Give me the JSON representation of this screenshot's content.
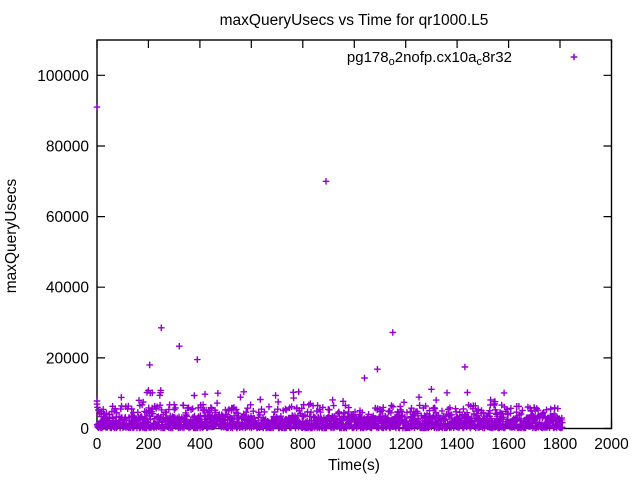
{
  "chart_data": {
    "type": "scatter",
    "title": "maxQueryUsecs vs Time for qr1000.L5",
    "xlabel": "Time(s)",
    "ylabel": "maxQueryUsecs",
    "xlim": [
      0,
      2000
    ],
    "ylim": [
      0,
      110000
    ],
    "xticks": [
      0,
      200,
      400,
      600,
      800,
      1000,
      1200,
      1400,
      1600,
      1800,
      2000
    ],
    "yticks": [
      0,
      20000,
      40000,
      60000,
      80000,
      100000
    ],
    "grid": false,
    "background_color": "#ffffff",
    "border_color": "#000000",
    "legend_position": "top-right-inside",
    "series": [
      {
        "name": "pg178_o2nofp.cx10a_c8r32",
        "name_segments": [
          {
            "text": "pg178",
            "subscript": false
          },
          {
            "text": "o",
            "subscript": true
          },
          {
            "text": "2nofp.cx10a",
            "subscript": false
          },
          {
            "text": "c",
            "subscript": true
          },
          {
            "text": "8r32",
            "subscript": false
          }
        ],
        "marker": "plus",
        "color": "#9400d3",
        "outliers": [
          [
            0,
            91000
          ],
          [
            890,
            70000
          ],
          [
            250,
            28500
          ],
          [
            1150,
            27200
          ],
          [
            320,
            23300
          ],
          [
            390,
            19500
          ],
          [
            205,
            18000
          ],
          [
            1430,
            17400
          ],
          [
            1090,
            16800
          ],
          [
            1040,
            14300
          ],
          [
            1300,
            11100
          ],
          [
            200,
            10800
          ],
          [
            248,
            10800
          ],
          [
            1440,
            10200
          ],
          [
            215,
            10100
          ],
          [
            420,
            9700
          ],
          [
            1530,
            8100
          ],
          [
            1547,
            7600
          ],
          [
            1545,
            7000
          ],
          [
            1675,
            6100
          ],
          [
            1683,
            5800
          ],
          [
            0,
            7800
          ],
          [
            0,
            6900
          ],
          [
            2,
            6000
          ],
          [
            5,
            5200
          ]
        ],
        "band": {
          "description": "Dense noise band of per-second samples; most values 200-3600 usecs with frequent excursions toward 7000-10500 usecs; samples span 0-1810 s",
          "x_min": 0,
          "x_max": 1810,
          "count": 1600,
          "y_floor": 150,
          "y_core_max": 3600,
          "y_mid": [
            3600,
            5400
          ],
          "y_high": [
            5400,
            6800
          ],
          "y_spike": [
            6800,
            10500
          ],
          "core_fraction": 0.825,
          "mid_fraction": 0.1,
          "high_fraction": 0.055,
          "spike_fraction": 0.02
        }
      }
    ]
  }
}
